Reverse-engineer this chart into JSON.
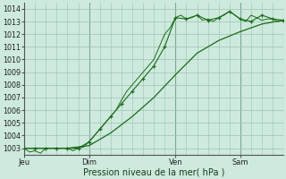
{
  "xlabel": "Pression niveau de la mer( hPa )",
  "background_color": "#ceeade",
  "grid_color": "#a8c8b8",
  "line_color": "#1a6b1a",
  "ylim": [
    1002.5,
    1014.5
  ],
  "yticks": [
    1003,
    1004,
    1005,
    1006,
    1007,
    1008,
    1009,
    1010,
    1011,
    1012,
    1013,
    1014
  ],
  "xlim": [
    0,
    24
  ],
  "day_positions": [
    0,
    6,
    14,
    20
  ],
  "day_labels": [
    "Jeu",
    "Dim",
    "Ven",
    "Sam"
  ],
  "vline_positions": [
    0,
    6,
    14,
    20,
    24
  ],
  "line1_x": [
    0,
    0.5,
    1,
    1.5,
    2,
    2.5,
    3,
    3.5,
    4,
    4.5,
    5,
    5.5,
    6,
    6.5,
    7,
    7.5,
    8,
    8.5,
    9,
    9.5,
    10,
    10.5,
    11,
    11.5,
    12,
    12.5,
    13,
    13.5,
    14,
    14.5,
    15,
    15.5,
    16,
    16.5,
    17,
    17.5,
    18,
    18.5,
    19,
    19.5,
    20,
    20.5,
    21,
    21.5,
    22,
    22.5,
    23,
    23.5,
    24
  ],
  "line1_y": [
    1003.0,
    1002.7,
    1002.8,
    1002.6,
    1003.0,
    1003.0,
    1003.0,
    1003.0,
    1003.0,
    1002.8,
    1003.0,
    1003.1,
    1003.5,
    1004.0,
    1004.5,
    1005.0,
    1005.5,
    1006.0,
    1006.8,
    1007.5,
    1008.0,
    1008.5,
    1009.0,
    1009.5,
    1010.0,
    1011.0,
    1012.0,
    1012.5,
    1013.3,
    1013.5,
    1013.2,
    1013.3,
    1013.5,
    1013.1,
    1013.2,
    1013.0,
    1013.3,
    1013.5,
    1013.8,
    1013.5,
    1013.2,
    1013.0,
    1013.5,
    1013.3,
    1013.1,
    1013.2,
    1013.2,
    1013.0,
    1013.1
  ],
  "line2_x": [
    0,
    1,
    2,
    3,
    4,
    5,
    6,
    7,
    8,
    9,
    10,
    11,
    12,
    13,
    14,
    15,
    16,
    17,
    18,
    19,
    20,
    21,
    22,
    23,
    24
  ],
  "line2_y": [
    1003.0,
    1003.0,
    1003.0,
    1003.0,
    1003.0,
    1003.0,
    1003.5,
    1004.5,
    1005.5,
    1006.5,
    1007.5,
    1008.5,
    1009.5,
    1011.0,
    1013.3,
    1013.2,
    1013.5,
    1013.1,
    1013.3,
    1013.8,
    1013.2,
    1013.0,
    1013.5,
    1013.2,
    1013.1
  ],
  "line3_x": [
    0,
    2,
    4,
    6,
    8,
    10,
    12,
    14,
    16,
    18,
    20,
    22,
    24
  ],
  "line3_y": [
    1003.0,
    1003.0,
    1003.0,
    1003.2,
    1004.2,
    1005.5,
    1007.0,
    1008.8,
    1010.5,
    1011.5,
    1012.2,
    1012.8,
    1013.1
  ],
  "marker_x": [
    0,
    1,
    2,
    3,
    4,
    5,
    6,
    7,
    8,
    9,
    10,
    11,
    12,
    13,
    14,
    15,
    16,
    17,
    18,
    19,
    20,
    21,
    22,
    23,
    24
  ],
  "marker_y": [
    1003.0,
    1003.0,
    1003.0,
    1003.0,
    1003.0,
    1003.0,
    1003.5,
    1004.5,
    1005.5,
    1006.5,
    1007.5,
    1008.5,
    1009.5,
    1011.0,
    1013.3,
    1013.2,
    1013.5,
    1013.1,
    1013.3,
    1013.8,
    1013.2,
    1013.0,
    1013.5,
    1013.2,
    1013.1
  ]
}
